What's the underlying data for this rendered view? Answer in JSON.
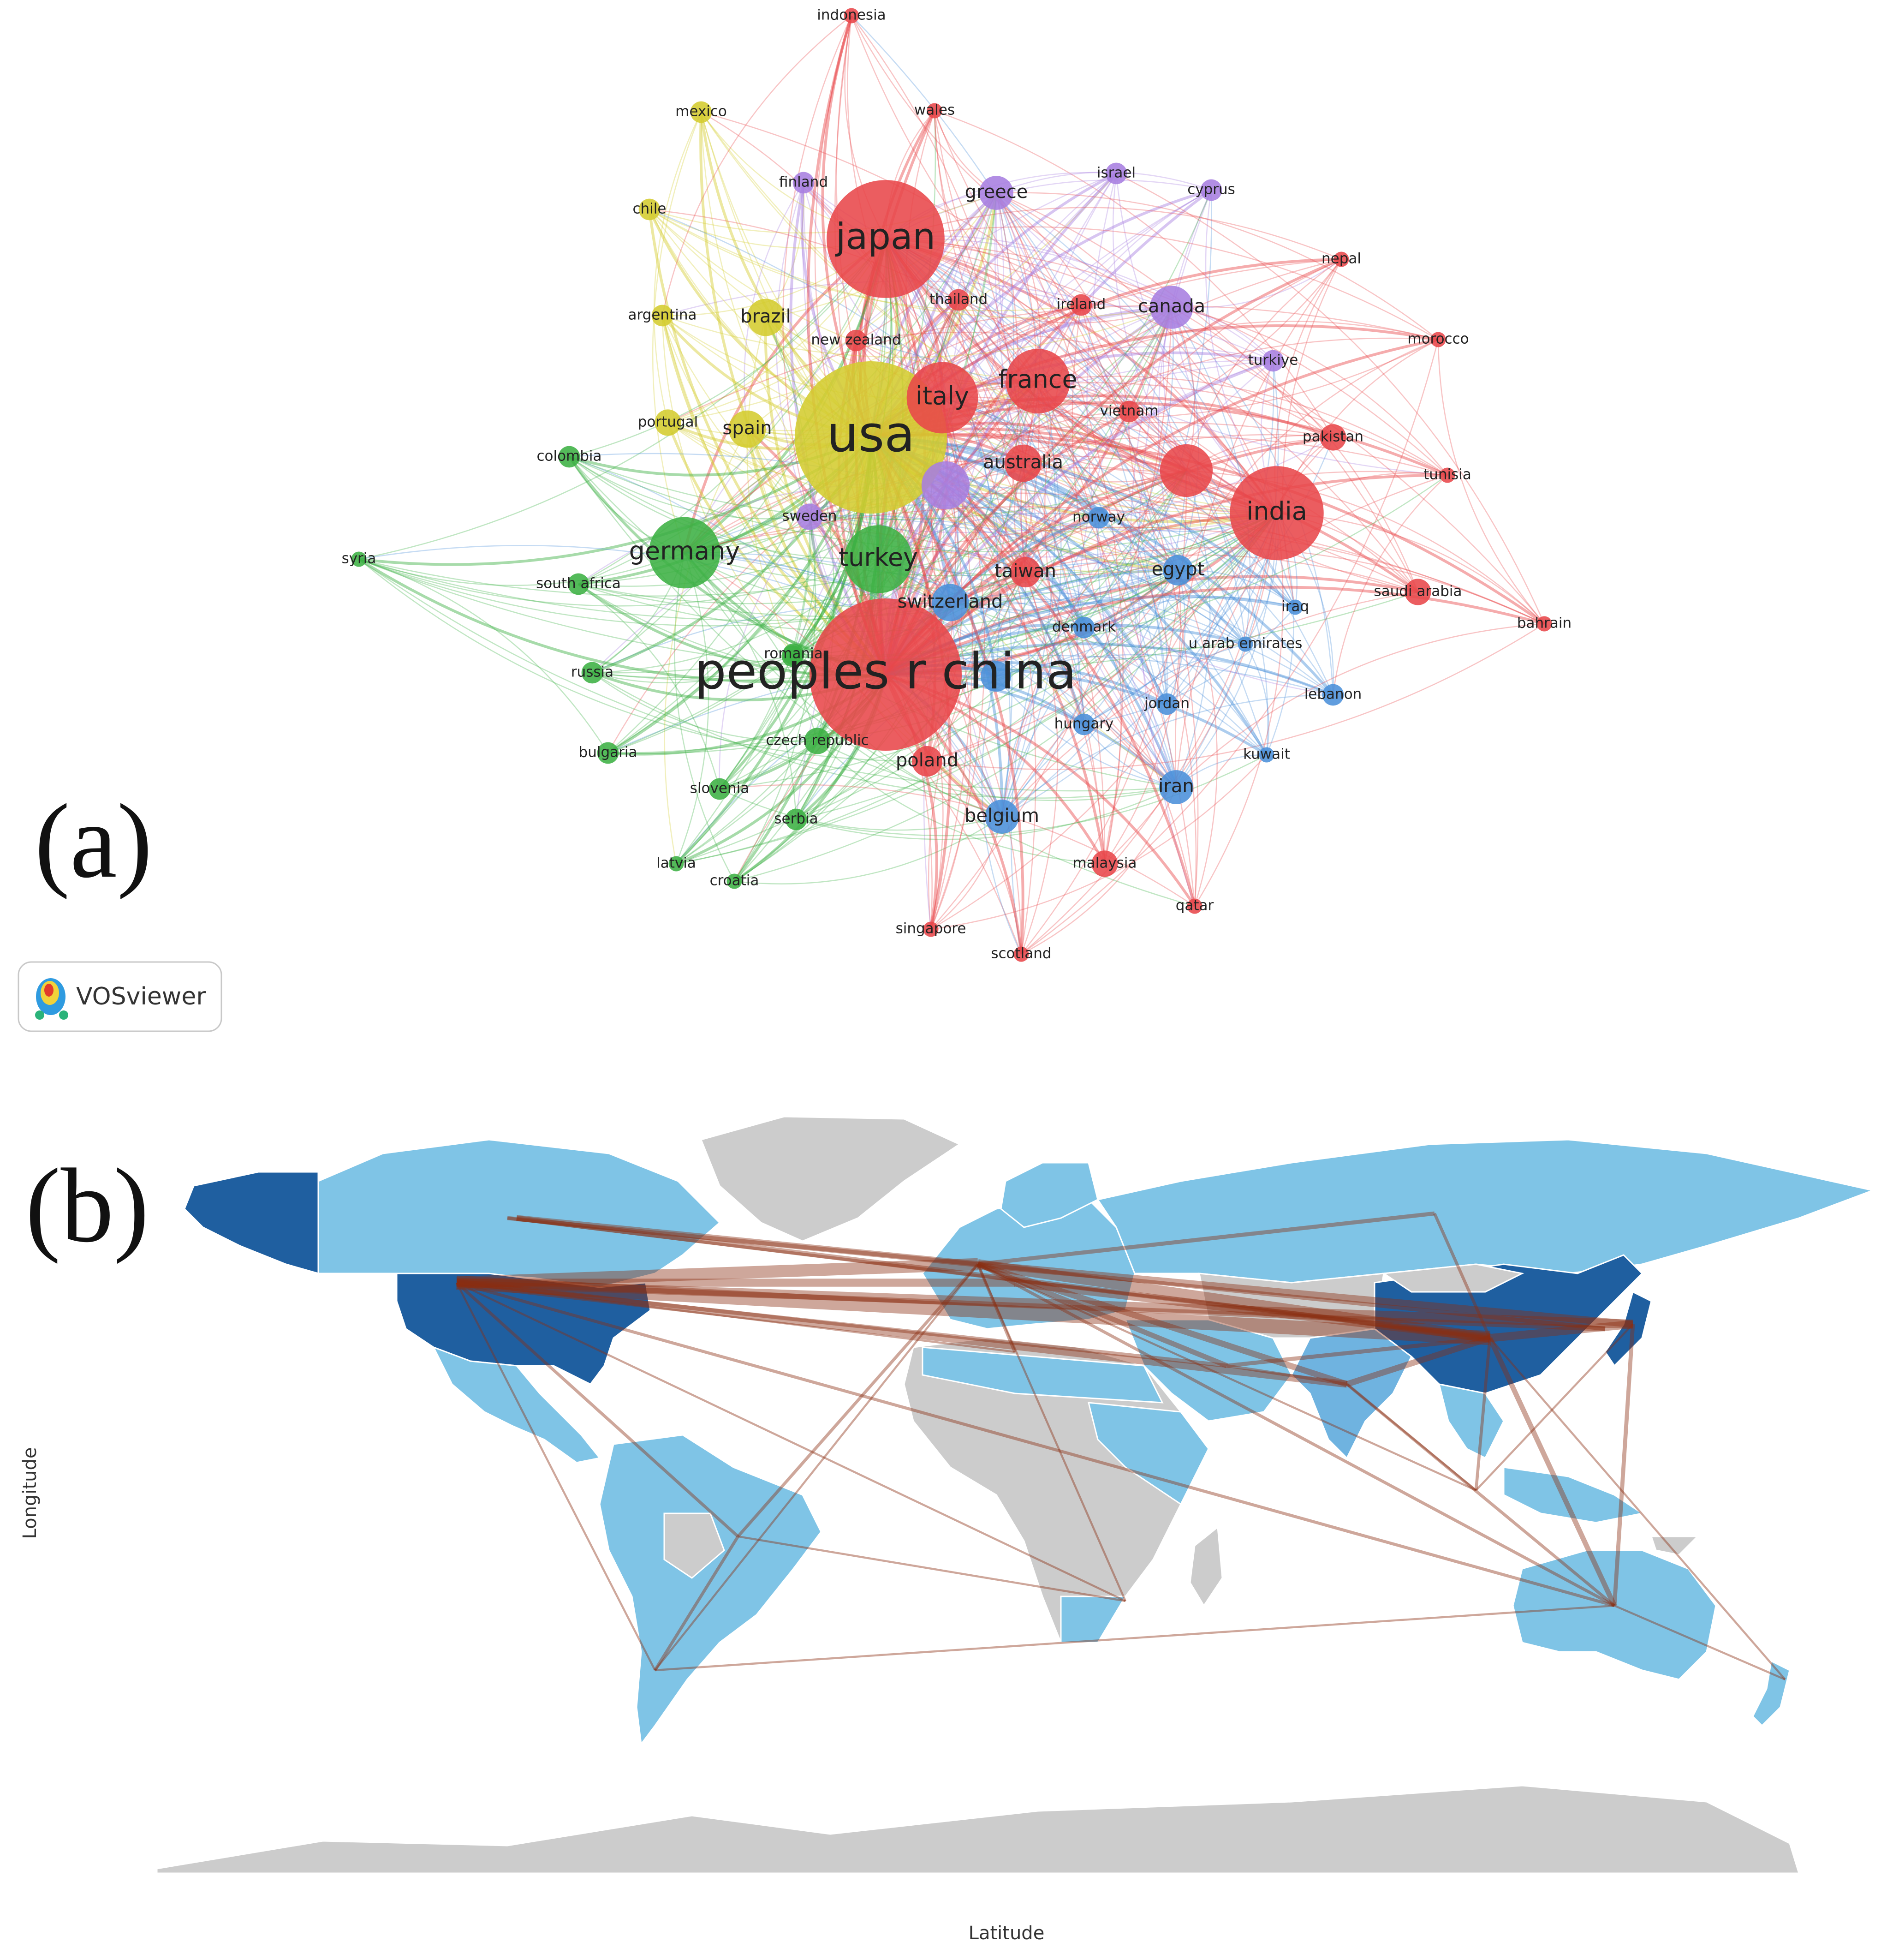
{
  "panel_a": {
    "label": "(a)",
    "brand": "VOSviewer",
    "cluster_colors": {
      "red": "#e8474a",
      "green": "#3cb043",
      "blue": "#4a90d9",
      "yellow": "#d4cc2f",
      "purple": "#a77ee0"
    },
    "nodes": [
      {
        "label": "usa",
        "cluster": "yellow",
        "weight": 100
      },
      {
        "label": "peoples r china",
        "cluster": "red",
        "weight": 100
      },
      {
        "label": "japan",
        "cluster": "red",
        "weight": 60
      },
      {
        "label": "india",
        "cluster": "red",
        "weight": 38
      },
      {
        "label": "germany",
        "cluster": "green",
        "weight": 22
      },
      {
        "label": "italy",
        "cluster": "red",
        "weight": 22
      },
      {
        "label": "france",
        "cluster": "red",
        "weight": 18
      },
      {
        "label": "turkey",
        "cluster": "green",
        "weight": 20
      },
      {
        "label": "canada",
        "cluster": "purple",
        "weight": 8
      },
      {
        "label": "brazil",
        "cluster": "yellow",
        "weight": 6
      },
      {
        "label": "spain",
        "cluster": "yellow",
        "weight": 6
      },
      {
        "label": "australia",
        "cluster": "red",
        "weight": 6
      },
      {
        "label": "switzerland",
        "cluster": "blue",
        "weight": 6
      },
      {
        "label": "greece",
        "cluster": "purple",
        "weight": 5
      },
      {
        "label": "iran",
        "cluster": "blue",
        "weight": 5
      },
      {
        "label": "belgium",
        "cluster": "blue",
        "weight": 5
      },
      {
        "label": "egypt",
        "cluster": "blue",
        "weight": 4
      },
      {
        "label": "taiwan",
        "cluster": "red",
        "weight": 4
      },
      {
        "label": "poland",
        "cluster": "red",
        "weight": 4
      },
      {
        "label": "saudi arabia",
        "cluster": "red",
        "weight": 3
      },
      {
        "label": "czech republic",
        "cluster": "green",
        "weight": 3
      },
      {
        "label": "portugal",
        "cluster": "yellow",
        "weight": 3
      },
      {
        "label": "sweden",
        "cluster": "purple",
        "weight": 3
      },
      {
        "label": "pakistan",
        "cluster": "red",
        "weight": 3
      },
      {
        "label": "malaysia",
        "cluster": "red",
        "weight": 3
      },
      {
        "label": "denmark",
        "cluster": "blue",
        "weight": 2
      },
      {
        "label": "hungary",
        "cluster": "blue",
        "weight": 2
      },
      {
        "label": "jordan",
        "cluster": "blue",
        "weight": 2
      },
      {
        "label": "lebanon",
        "cluster": "blue",
        "weight": 2
      },
      {
        "label": "norway",
        "cluster": "blue",
        "weight": 2
      },
      {
        "label": "new zealand",
        "cluster": "red",
        "weight": 2
      },
      {
        "label": "thailand",
        "cluster": "red",
        "weight": 2
      },
      {
        "label": "ireland",
        "cluster": "red",
        "weight": 2
      },
      {
        "label": "vietnam",
        "cluster": "red",
        "weight": 2
      },
      {
        "label": "turkiye",
        "cluster": "purple",
        "weight": 2
      },
      {
        "label": "israel",
        "cluster": "purple",
        "weight": 2
      },
      {
        "label": "cyprus",
        "cluster": "purple",
        "weight": 2
      },
      {
        "label": "finland",
        "cluster": "purple",
        "weight": 2
      },
      {
        "label": "mexico",
        "cluster": "yellow",
        "weight": 2
      },
      {
        "label": "chile",
        "cluster": "yellow",
        "weight": 2
      },
      {
        "label": "argentina",
        "cluster": "yellow",
        "weight": 2
      },
      {
        "label": "colombia",
        "cluster": "green",
        "weight": 2
      },
      {
        "label": "south africa",
        "cluster": "green",
        "weight": 2
      },
      {
        "label": "romania",
        "cluster": "green",
        "weight": 2
      },
      {
        "label": "russia",
        "cluster": "green",
        "weight": 2
      },
      {
        "label": "bulgaria",
        "cluster": "green",
        "weight": 2
      },
      {
        "label": "slovenia",
        "cluster": "green",
        "weight": 2
      },
      {
        "label": "serbia",
        "cluster": "green",
        "weight": 2
      },
      {
        "label": "latvia",
        "cluster": "green",
        "weight": 1
      },
      {
        "label": "croatia",
        "cluster": "green",
        "weight": 1
      },
      {
        "label": "syria",
        "cluster": "green",
        "weight": 1
      },
      {
        "label": "iraq",
        "cluster": "blue",
        "weight": 1
      },
      {
        "label": "u arab emirates",
        "cluster": "blue",
        "weight": 1
      },
      {
        "label": "kuwait",
        "cluster": "blue",
        "weight": 1
      },
      {
        "label": "qatar",
        "cluster": "red",
        "weight": 1
      },
      {
        "label": "singapore",
        "cluster": "red",
        "weight": 1
      },
      {
        "label": "scotland",
        "cluster": "red",
        "weight": 1
      },
      {
        "label": "wales",
        "cluster": "red",
        "weight": 1
      },
      {
        "label": "indonesia",
        "cluster": "red",
        "weight": 1
      },
      {
        "label": "nepal",
        "cluster": "red",
        "weight": 1
      },
      {
        "label": "morocco",
        "cluster": "red",
        "weight": 1
      },
      {
        "label": "tunisia",
        "cluster": "red",
        "weight": 1
      },
      {
        "label": "bahrain",
        "cluster": "red",
        "weight": 1
      },
      {
        "label": "",
        "cluster": "purple",
        "weight": 10
      },
      {
        "label": "",
        "cluster": "red",
        "weight": 12
      },
      {
        "label": "",
        "cluster": "blue",
        "weight": 4
      },
      {
        "label": "",
        "cluster": "green",
        "weight": 2
      }
    ]
  },
  "panel_b": {
    "label": "(b)",
    "xlabel": "Latitude",
    "ylabel": "Longitude",
    "colors": {
      "land_none": "#cccccc",
      "land_low": "#7fc4e6",
      "land_mid": "#6fb3e0",
      "land_high": "#1f5fa0",
      "link": "#8b2d10"
    }
  }
}
